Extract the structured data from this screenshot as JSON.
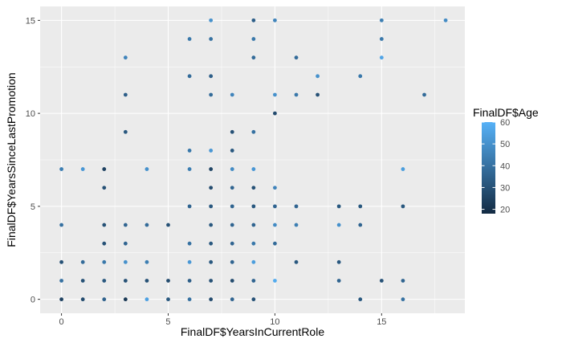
{
  "chart_data": {
    "type": "scatter",
    "title": "",
    "xlabel": "FinalDF$YearsInCurrentRole",
    "ylabel": "FinalDF$YearsSinceLastPromotion",
    "xlim": [
      -1.0,
      18.9
    ],
    "ylim": [
      -0.75,
      15.75
    ],
    "x_ticks": [
      0,
      5,
      10,
      15
    ],
    "y_ticks": [
      0,
      5,
      10,
      15
    ],
    "x_tick_labels": [
      "0",
      "5",
      "10",
      "15"
    ],
    "y_tick_labels": [
      "0",
      "5",
      "10",
      "15"
    ],
    "grid": true,
    "background": "#ebebeb",
    "legend": {
      "title": "FinalDF$Age",
      "placement": "right",
      "range": [
        18,
        60
      ],
      "breaks": [
        20,
        30,
        40,
        50,
        60
      ],
      "break_labels": [
        "20",
        "30",
        "40",
        "50",
        "60"
      ],
      "low_color": "#132b43",
      "high_color": "#56b1f7"
    },
    "points": [
      {
        "x": 0,
        "y": 0,
        "age": 25
      },
      {
        "x": 0,
        "y": 1,
        "age": 40
      },
      {
        "x": 0,
        "y": 2,
        "age": 30
      },
      {
        "x": 0,
        "y": 4,
        "age": 40
      },
      {
        "x": 0,
        "y": 7,
        "age": 44
      },
      {
        "x": 1,
        "y": 0,
        "age": 28
      },
      {
        "x": 1,
        "y": 1,
        "age": 30
      },
      {
        "x": 1,
        "y": 2,
        "age": 38
      },
      {
        "x": 1,
        "y": 7,
        "age": 52
      },
      {
        "x": 2,
        "y": 0,
        "age": 35
      },
      {
        "x": 2,
        "y": 1,
        "age": 32
      },
      {
        "x": 2,
        "y": 2,
        "age": 42
      },
      {
        "x": 2,
        "y": 3,
        "age": 30
      },
      {
        "x": 2,
        "y": 4,
        "age": 30
      },
      {
        "x": 2,
        "y": 6,
        "age": 30
      },
      {
        "x": 2,
        "y": 7,
        "age": 25
      },
      {
        "x": 3,
        "y": 0,
        "age": 22
      },
      {
        "x": 3,
        "y": 1,
        "age": 30
      },
      {
        "x": 3,
        "y": 2,
        "age": 50
      },
      {
        "x": 3,
        "y": 3,
        "age": 36
      },
      {
        "x": 3,
        "y": 4,
        "age": 36
      },
      {
        "x": 3,
        "y": 9,
        "age": 32
      },
      {
        "x": 3,
        "y": 11,
        "age": 34
      },
      {
        "x": 3,
        "y": 13,
        "age": 46
      },
      {
        "x": 4,
        "y": 0,
        "age": 55
      },
      {
        "x": 4,
        "y": 1,
        "age": 30
      },
      {
        "x": 4,
        "y": 2,
        "age": 44
      },
      {
        "x": 4,
        "y": 4,
        "age": 38
      },
      {
        "x": 4,
        "y": 7,
        "age": 50
      },
      {
        "x": 5,
        "y": 0,
        "age": 32
      },
      {
        "x": 5,
        "y": 1,
        "age": 28
      },
      {
        "x": 5,
        "y": 4,
        "age": 30
      },
      {
        "x": 6,
        "y": 0,
        "age": 40
      },
      {
        "x": 6,
        "y": 1,
        "age": 34
      },
      {
        "x": 6,
        "y": 2,
        "age": 52
      },
      {
        "x": 6,
        "y": 3,
        "age": 40
      },
      {
        "x": 6,
        "y": 5,
        "age": 36
      },
      {
        "x": 6,
        "y": 7,
        "age": 44
      },
      {
        "x": 6,
        "y": 8,
        "age": 42
      },
      {
        "x": 6,
        "y": 12,
        "age": 38
      },
      {
        "x": 6,
        "y": 14,
        "age": 42
      },
      {
        "x": 7,
        "y": 0,
        "age": 28
      },
      {
        "x": 7,
        "y": 1,
        "age": 30
      },
      {
        "x": 7,
        "y": 2,
        "age": 32
      },
      {
        "x": 7,
        "y": 3,
        "age": 32
      },
      {
        "x": 7,
        "y": 4,
        "age": 32
      },
      {
        "x": 7,
        "y": 5,
        "age": 32
      },
      {
        "x": 7,
        "y": 6,
        "age": 28
      },
      {
        "x": 7,
        "y": 7,
        "age": 26
      },
      {
        "x": 7,
        "y": 8,
        "age": 52
      },
      {
        "x": 7,
        "y": 11,
        "age": 38
      },
      {
        "x": 7,
        "y": 12,
        "age": 34
      },
      {
        "x": 7,
        "y": 14,
        "age": 40
      },
      {
        "x": 7,
        "y": 15,
        "age": 50
      },
      {
        "x": 8,
        "y": 0,
        "age": 36
      },
      {
        "x": 8,
        "y": 1,
        "age": 28
      },
      {
        "x": 8,
        "y": 2,
        "age": 36
      },
      {
        "x": 8,
        "y": 3,
        "age": 36
      },
      {
        "x": 8,
        "y": 4,
        "age": 36
      },
      {
        "x": 8,
        "y": 5,
        "age": 36
      },
      {
        "x": 8,
        "y": 6,
        "age": 36
      },
      {
        "x": 8,
        "y": 7,
        "age": 48
      },
      {
        "x": 8,
        "y": 8,
        "age": 32
      },
      {
        "x": 8,
        "y": 9,
        "age": 30
      },
      {
        "x": 8,
        "y": 11,
        "age": 46
      },
      {
        "x": 9,
        "y": 0,
        "age": 30
      },
      {
        "x": 9,
        "y": 1,
        "age": 36
      },
      {
        "x": 9,
        "y": 2,
        "age": 54
      },
      {
        "x": 9,
        "y": 3,
        "age": 42
      },
      {
        "x": 9,
        "y": 4,
        "age": 36
      },
      {
        "x": 9,
        "y": 5,
        "age": 32
      },
      {
        "x": 9,
        "y": 6,
        "age": 30
      },
      {
        "x": 9,
        "y": 7,
        "age": 52
      },
      {
        "x": 9,
        "y": 9,
        "age": 40
      },
      {
        "x": 9,
        "y": 13,
        "age": 38
      },
      {
        "x": 9,
        "y": 14,
        "age": 42
      },
      {
        "x": 9,
        "y": 15,
        "age": 34
      },
      {
        "x": 10,
        "y": 1,
        "age": 58
      },
      {
        "x": 10,
        "y": 3,
        "age": 38
      },
      {
        "x": 10,
        "y": 4,
        "age": 48
      },
      {
        "x": 10,
        "y": 5,
        "age": 36
      },
      {
        "x": 10,
        "y": 6,
        "age": 46
      },
      {
        "x": 10,
        "y": 10,
        "age": 28
      },
      {
        "x": 10,
        "y": 11,
        "age": 50
      },
      {
        "x": 10,
        "y": 15,
        "age": 46
      },
      {
        "x": 11,
        "y": 2,
        "age": 32
      },
      {
        "x": 11,
        "y": 4,
        "age": 44
      },
      {
        "x": 11,
        "y": 5,
        "age": 36
      },
      {
        "x": 11,
        "y": 11,
        "age": 42
      },
      {
        "x": 11,
        "y": 13,
        "age": 38
      },
      {
        "x": 12,
        "y": 11,
        "age": 30
      },
      {
        "x": 12,
        "y": 12,
        "age": 50
      },
      {
        "x": 13,
        "y": 1,
        "age": 36
      },
      {
        "x": 13,
        "y": 2,
        "age": 32
      },
      {
        "x": 13,
        "y": 4,
        "age": 50
      },
      {
        "x": 13,
        "y": 5,
        "age": 32
      },
      {
        "x": 14,
        "y": 0,
        "age": 32
      },
      {
        "x": 14,
        "y": 4,
        "age": 36
      },
      {
        "x": 14,
        "y": 5,
        "age": 32
      },
      {
        "x": 14,
        "y": 12,
        "age": 42
      },
      {
        "x": 15,
        "y": 1,
        "age": 30
      },
      {
        "x": 15,
        "y": 13,
        "age": 56
      },
      {
        "x": 15,
        "y": 14,
        "age": 42
      },
      {
        "x": 15,
        "y": 15,
        "age": 44
      },
      {
        "x": 16,
        "y": 0,
        "age": 40
      },
      {
        "x": 16,
        "y": 1,
        "age": 36
      },
      {
        "x": 16,
        "y": 5,
        "age": 32
      },
      {
        "x": 16,
        "y": 7,
        "age": 54
      },
      {
        "x": 17,
        "y": 11,
        "age": 38
      },
      {
        "x": 18,
        "y": 15,
        "age": 48
      }
    ]
  }
}
